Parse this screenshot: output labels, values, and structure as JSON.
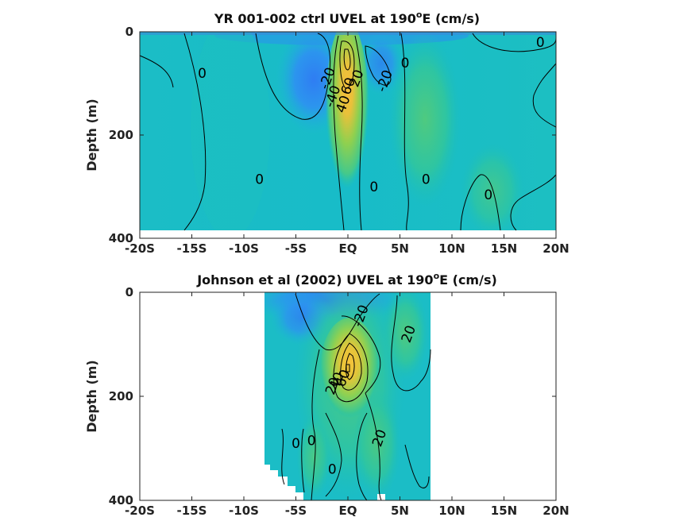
{
  "chart_data": [
    {
      "type": "heatmap",
      "title_main": "YR 001-002 ctrl UVEL at 190",
      "title_sup": "o",
      "title_end": "E (cm/s)",
      "ylabel": "Depth (m)",
      "xlabel": "",
      "xlim": [
        -20,
        20
      ],
      "ylim": [
        400,
        0
      ],
      "y_reversed": true,
      "x_ticks": [
        -20,
        -15,
        -10,
        -5,
        0,
        5,
        10,
        15,
        20
      ],
      "x_tick_labels": [
        "-20S",
        "-15S",
        "-10S",
        "-5S",
        "EQ",
        "5N",
        "10N",
        "15N",
        "20N"
      ],
      "y_ticks": [
        0,
        200,
        400
      ],
      "y_tick_labels": [
        "0",
        "200",
        "400"
      ],
      "data_extent": {
        "x": [
          -20,
          20
        ],
        "depth": [
          5,
          380
        ]
      },
      "features": [
        {
          "name": "Equatorial Undercurrent core",
          "lat": 0,
          "depth": 90,
          "value": 60
        },
        {
          "name": "westward surface flow",
          "lat": -4,
          "depth": 60,
          "value": -30
        },
        {
          "name": "westward flow north",
          "lat": 3,
          "depth": 70,
          "value": -20
        }
      ],
      "contour_labels": [
        {
          "text": "0",
          "lat": -14,
          "depth": 80
        },
        {
          "text": "-20",
          "lat": -2,
          "depth": 90
        },
        {
          "text": "-40",
          "lat": -1.5,
          "depth": 125
        },
        {
          "text": "40",
          "lat": -0.5,
          "depth": 140
        },
        {
          "text": "60",
          "lat": 0,
          "depth": 105
        },
        {
          "text": "20",
          "lat": 0.8,
          "depth": 90
        },
        {
          "text": "-20",
          "lat": 3.5,
          "depth": 95
        },
        {
          "text": "0",
          "lat": 5.5,
          "depth": 60
        },
        {
          "text": "0",
          "lat": 18.5,
          "depth": 20
        },
        {
          "text": "0",
          "lat": -8.5,
          "depth": 285
        },
        {
          "text": "0",
          "lat": 2.5,
          "depth": 300
        },
        {
          "text": "0",
          "lat": 7.5,
          "depth": 285
        },
        {
          "text": "0",
          "lat": 13.5,
          "depth": 315
        }
      ],
      "colormap": [
        "#3e26a8",
        "#2c7cf6",
        "#12bee0",
        "#25c8a0",
        "#7ed255",
        "#f5c63a",
        "#f9fb0e"
      ],
      "grid": false
    },
    {
      "type": "heatmap",
      "title_main": "Johnson et al (2002) UVEL at 190",
      "title_sup": "o",
      "title_end": "E (cm/s)",
      "ylabel": "Depth (m)",
      "xlabel": "",
      "xlim": [
        -20,
        20
      ],
      "ylim": [
        400,
        0
      ],
      "y_reversed": true,
      "x_ticks": [
        -20,
        -15,
        -10,
        -5,
        0,
        5,
        10,
        15,
        20
      ],
      "x_tick_labels": [
        "-20S",
        "-15S",
        "-10S",
        "-5S",
        "EQ",
        "5N",
        "10N",
        "15N",
        "20N"
      ],
      "y_ticks": [
        0,
        200,
        400
      ],
      "y_tick_labels": [
        "0",
        "200",
        "400"
      ],
      "data_extent": {
        "x": [
          -8,
          8
        ],
        "depth": [
          0,
          400
        ]
      },
      "features": [
        {
          "name": "Equatorial Undercurrent core",
          "lat": 0.5,
          "depth": 150,
          "value": 65
        },
        {
          "name": "westward surface flow",
          "lat": -1,
          "depth": 20,
          "value": -30
        }
      ],
      "contour_labels": [
        {
          "text": "-20",
          "lat": 1.2,
          "depth": 45
        },
        {
          "text": "20",
          "lat": 5.8,
          "depth": 80
        },
        {
          "text": "20",
          "lat": -1.5,
          "depth": 180
        },
        {
          "text": "40",
          "lat": -1.1,
          "depth": 170
        },
        {
          "text": "60",
          "lat": -0.5,
          "depth": 165
        },
        {
          "text": "20",
          "lat": 3,
          "depth": 280
        },
        {
          "text": "0",
          "lat": -5,
          "depth": 290
        },
        {
          "text": "0",
          "lat": -3.5,
          "depth": 285
        },
        {
          "text": "0",
          "lat": -1.5,
          "depth": 340
        }
      ],
      "colormap": [
        "#3e26a8",
        "#2c7cf6",
        "#12bee0",
        "#25c8a0",
        "#7ed255",
        "#f5c63a",
        "#f9fb0e"
      ],
      "grid": false
    }
  ]
}
